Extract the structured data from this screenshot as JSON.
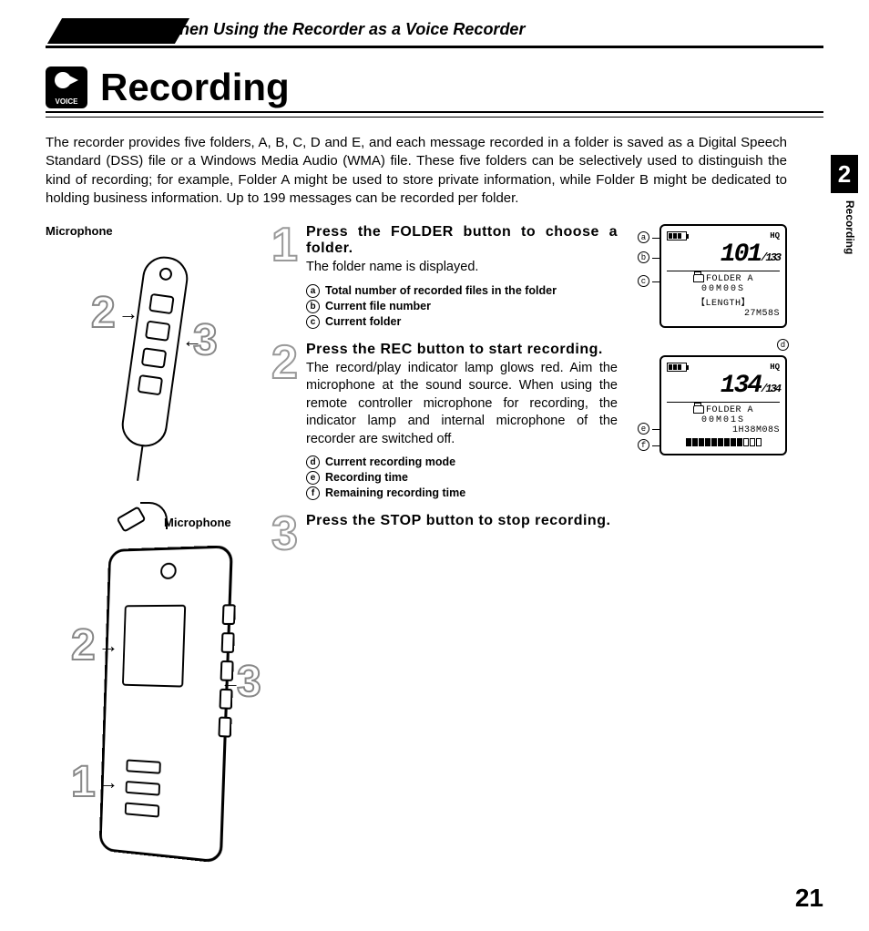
{
  "header": {
    "banner": "When Using the Recorder as a Voice Recorder",
    "title": "Recording",
    "voice_icon_label": "VOICE"
  },
  "side": {
    "chapter_number": "2",
    "chapter_label": "Recording"
  },
  "intro": "The recorder provides five folders, A, B, C, D and E, and each message recorded in a folder is saved as a Digital Speech Standard (DSS) file or a Windows Media Audio (WMA) file. These five folders can be selectively used to distinguish the kind of recording; for example, Folder A might be used to store private information, while Folder B might be dedicated to holding business information. Up to 199 messages can be recorded per folder.",
  "labels": {
    "microphone": "Microphone"
  },
  "device_callouts": {
    "remote": {
      "n2": "2",
      "n3": "3"
    },
    "recorder": {
      "n1": "1",
      "n2": "2",
      "n3": "3"
    }
  },
  "steps": [
    {
      "num": "1",
      "head_pre": "Press the ",
      "head_kw": "FOLDER",
      "head_post": " button to choose a folder.",
      "body": "The folder name is displayed.",
      "annots": [
        {
          "mark": "a",
          "text": "Total number of recorded files in the folder"
        },
        {
          "mark": "b",
          "text": "Current file number"
        },
        {
          "mark": "c",
          "text": "Current folder"
        }
      ]
    },
    {
      "num": "2",
      "head_pre": "Press the ",
      "head_kw": "REC",
      "head_post": " button to start recording.",
      "body": "The record/play indicator lamp glows red. Aim the microphone at the sound source. When using the remote controller microphone for recording, the indicator lamp and internal microphone of the recorder are switched off.",
      "annots": [
        {
          "mark": "d",
          "text": "Current recording mode"
        },
        {
          "mark": "e",
          "text": "Recording time"
        },
        {
          "mark": "f",
          "text": "Remaining recording time"
        }
      ]
    },
    {
      "num": "3",
      "head_pre": "Press the ",
      "head_kw": "STOP",
      "head_post": " button to stop recording.",
      "body": "",
      "annots": []
    }
  ],
  "lcd1": {
    "hq": "HQ",
    "main_number": "101",
    "total": "/133",
    "folder_label": "FOLDER A",
    "time": "00M00S",
    "length_label": "【LENGTH】",
    "length_value": "27M58S",
    "callouts": [
      "a",
      "b",
      "c"
    ]
  },
  "lcd2": {
    "hq": "HQ",
    "main_number": "134",
    "total": "/134",
    "folder_label": "FOLDER A",
    "time": "00M01S",
    "remain": "1H38M08S",
    "bar_filled": 9,
    "bar_total": 12,
    "callouts": [
      "d",
      "e",
      "f"
    ]
  },
  "page_number": "21",
  "style": {
    "colors": {
      "text": "#000000",
      "bg": "#ffffff",
      "outline_num_stroke": "#888888"
    },
    "fonts": {
      "title_pt": 42,
      "body_pt": 15,
      "step_head_pt": 16,
      "step_num_pt": 52,
      "annot_pt": 12.5
    }
  }
}
